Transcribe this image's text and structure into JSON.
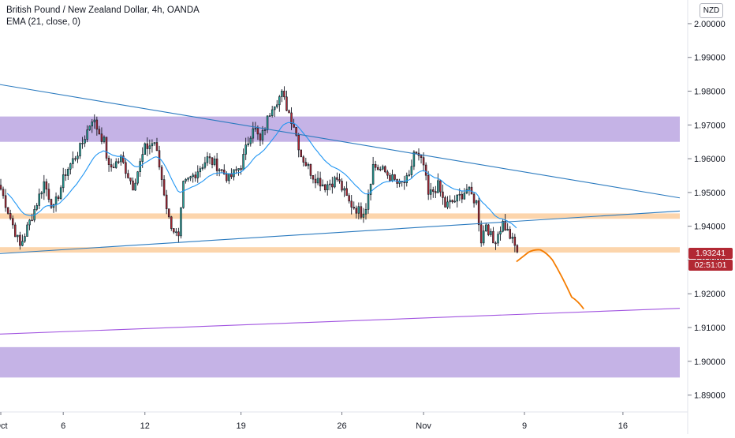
{
  "legend": {
    "symbol_title": "British Pound / New Zealand Dollar, 4h, OANDA",
    "indicator": "EMA (21, close, 0)"
  },
  "currency": "NZD",
  "last_price": "1.93241",
  "countdown": "02:51:01",
  "chart_data": {
    "type": "candlestick",
    "title": "British Pound / New Zealand Dollar, 4h, OANDA",
    "ylim": [
      1.885,
      2.007
    ],
    "y_ticks": [
      "2.00000",
      "1.99000",
      "1.98000",
      "1.97000",
      "1.96000",
      "1.95000",
      "1.94000",
      "1.93000",
      "1.92000",
      "1.91000",
      "1.90000",
      "1.89000"
    ],
    "x_ticks": [
      "Oct",
      "6",
      "12",
      "19",
      "26",
      "Nov",
      "9",
      "16"
    ],
    "x_tick_index": [
      0,
      26,
      60,
      100,
      142,
      176,
      218,
      259
    ],
    "bar_count": 283,
    "last_index": 215,
    "grid": false,
    "colors": {
      "up": "#26a69a",
      "down": "#ef5350",
      "candle": "#131722",
      "body_down": "#b22833",
      "ema": "#2196f3",
      "trend": "#2a7abf",
      "support": "#a154e0",
      "projection": "#f57c00",
      "zone_purple": "#c5b3e6",
      "zone_orange": "#fcd5ac"
    },
    "path_x": [
      0,
      8,
      14,
      18,
      22,
      27,
      33,
      38,
      43,
      45,
      50,
      55,
      60,
      64,
      67,
      70,
      74,
      76,
      80,
      86,
      90,
      95,
      100,
      105,
      108,
      113,
      117,
      122,
      125,
      130,
      135,
      140,
      145,
      150,
      152,
      155,
      160,
      166,
      170,
      172,
      176,
      178,
      182,
      185,
      190,
      194,
      198,
      200,
      202,
      205,
      209,
      212,
      214,
      215
    ],
    "path_y": [
      1.951,
      1.934,
      1.945,
      1.953,
      1.945,
      1.956,
      1.963,
      1.972,
      1.965,
      1.957,
      1.96,
      1.952,
      1.963,
      1.965,
      1.954,
      1.942,
      1.936,
      1.952,
      1.955,
      1.96,
      1.958,
      1.954,
      1.958,
      1.97,
      1.965,
      1.976,
      1.979,
      1.97,
      1.961,
      1.955,
      1.952,
      1.954,
      1.947,
      1.944,
      1.946,
      1.958,
      1.956,
      1.952,
      1.954,
      1.962,
      1.958,
      1.949,
      1.952,
      1.946,
      1.948,
      1.951,
      1.947,
      1.936,
      1.941,
      1.935,
      1.941,
      1.937,
      1.934,
      1.932
    ],
    "ema_start": 3,
    "zones": [
      {
        "color": "zone_purple",
        "from": 1.9725,
        "to": 1.965
      },
      {
        "color": "zone_orange",
        "from": 1.9438,
        "to": 1.9422
      },
      {
        "color": "zone_orange",
        "from": 1.9338,
        "to": 1.9322
      },
      {
        "color": "zone_purple",
        "from": 1.9042,
        "to": 1.8952
      }
    ],
    "trendlines": [
      {
        "color": "trend",
        "x": [
          -2,
          283
        ],
        "y": [
          1.9822,
          1.9484
        ]
      },
      {
        "color": "trend",
        "x": [
          -2,
          283
        ],
        "y": [
          1.9318,
          1.9445
        ]
      },
      {
        "color": "support",
        "x": [
          -2,
          283
        ],
        "y": [
          1.908,
          1.9157
        ]
      }
    ],
    "projection": {
      "x": [
        215,
        220,
        225,
        230,
        238,
        243
      ],
      "y": [
        1.9295,
        1.9323,
        1.933,
        1.93,
        1.919,
        1.9155
      ]
    }
  }
}
